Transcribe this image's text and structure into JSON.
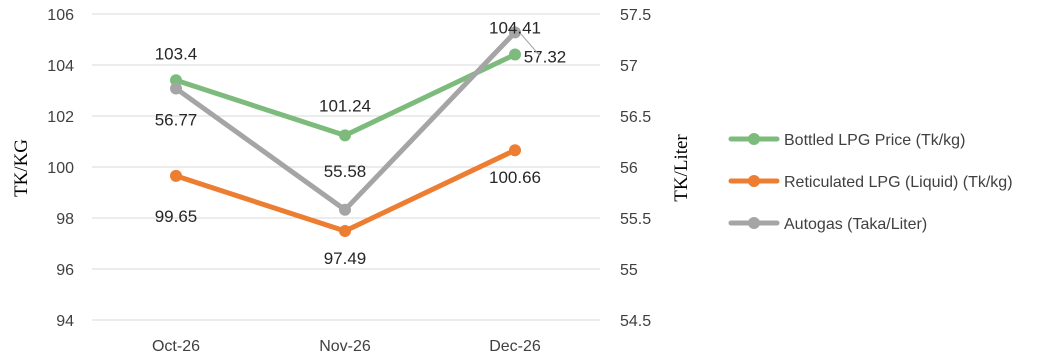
{
  "chart_data": {
    "type": "line",
    "categories": [
      "Oct-26",
      "Nov-26",
      "Dec-26"
    ],
    "title": "",
    "ylabel": "TK/KG",
    "y2label": "TK/Liter",
    "ylim": [
      94,
      106
    ],
    "y2lim": [
      54.5,
      57.5
    ],
    "yticks": [
      "94",
      "96",
      "98",
      "100",
      "102",
      "104",
      "106"
    ],
    "y2ticks": [
      "54.5",
      "55",
      "55.5",
      "56",
      "56.5",
      "57",
      "57.5"
    ],
    "grid": true,
    "legend_position": "right",
    "series": [
      {
        "name": "Bottled LPG Price (Tk/kg)",
        "axis": "left",
        "color": "#7dbb7d",
        "values": [
          103.4,
          101.24,
          104.41
        ],
        "labels": [
          "103.4",
          "101.24",
          "104.41"
        ]
      },
      {
        "name": "Reticulated LPG (Liquid) (Tk/kg)",
        "axis": "left",
        "color": "#ed7d31",
        "values": [
          99.65,
          97.49,
          100.66
        ],
        "labels": [
          "99.65",
          "97.49",
          "100.66"
        ]
      },
      {
        "name": "Autogas (Taka/Liter)",
        "axis": "right",
        "color": "#a5a5a5",
        "values": [
          56.77,
          55.58,
          57.32
        ],
        "labels": [
          "56.77",
          "55.58",
          "57.32"
        ]
      }
    ]
  }
}
